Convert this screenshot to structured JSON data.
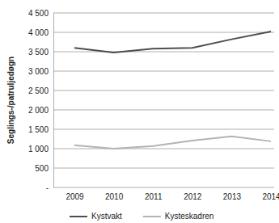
{
  "chart_data": {
    "type": "line",
    "y_label": "Seglings-/patruljedøgn",
    "categories": [
      "2009",
      "2010",
      "2011",
      "2012",
      "2013",
      "2014"
    ],
    "series": [
      {
        "name": "Kystvakt",
        "color": "#4d4d4d",
        "values": [
          3600,
          3480,
          3580,
          3600,
          3820,
          4020
        ]
      },
      {
        "name": "Kysteskadren",
        "color": "#b3b3b3",
        "values": [
          1090,
          1000,
          1070,
          1210,
          1320,
          1190
        ]
      }
    ],
    "ylim": [
      0,
      4500
    ],
    "yticks": [
      {
        "value": 0,
        "label": "-"
      },
      500,
      {
        "value": 1000,
        "label": "1 000"
      },
      {
        "value": 1500,
        "label": "1 500"
      },
      {
        "value": 2000,
        "label": "2 000"
      },
      {
        "value": 2500,
        "label": "2 500"
      },
      {
        "value": 3000,
        "label": "3 000"
      },
      {
        "value": 3500,
        "label": "3 500"
      },
      {
        "value": 4000,
        "label": "4 000"
      },
      {
        "value": 4500,
        "label": "4 500"
      }
    ],
    "grid": true,
    "legend": "bottom"
  }
}
